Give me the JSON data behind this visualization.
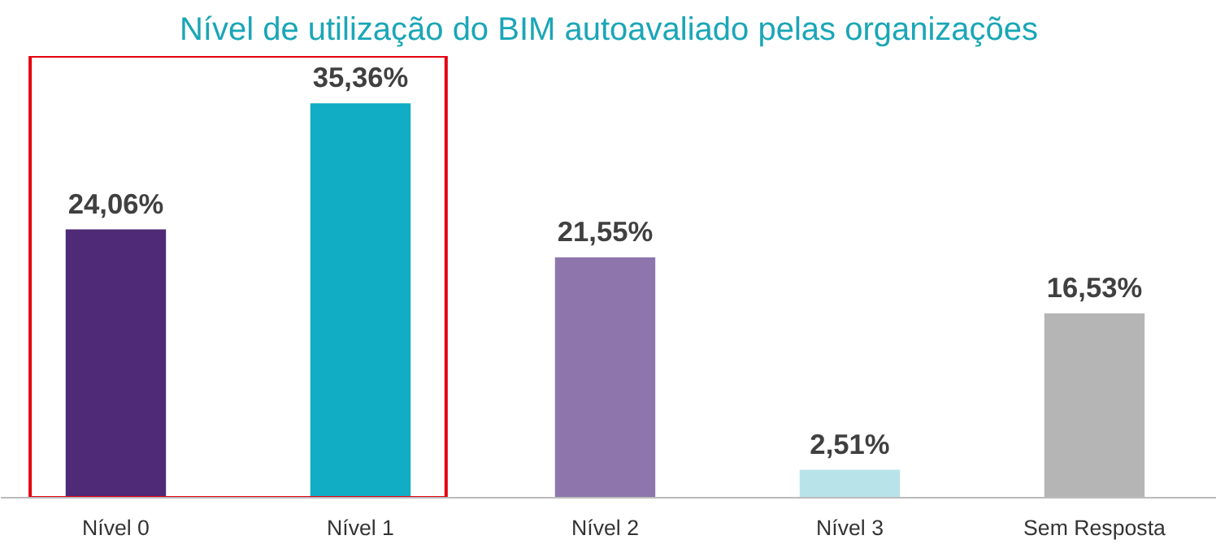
{
  "chart_data": {
    "type": "bar",
    "title": "Nível de utilização do BIM autoavaliado pelas organizações",
    "categories": [
      "Nível 0",
      "Nível 1",
      "Nível 2",
      "Nível 3",
      "Sem Resposta"
    ],
    "values": [
      24.06,
      35.36,
      21.55,
      2.51,
      16.53
    ],
    "colors": [
      "#4e2a77",
      "#10adc4",
      "#8e76ad",
      "#b8e4e9",
      "#b5b5b5"
    ],
    "value_labels": [
      "24,06%",
      "35,36%",
      "21,55%",
      "2,51%",
      "16,53%"
    ],
    "grid": false
  }
}
